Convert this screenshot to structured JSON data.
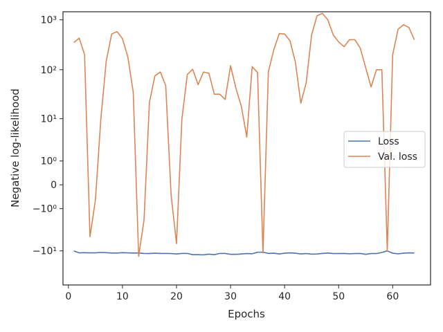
{
  "chart_data": {
    "type": "line",
    "xlabel": "Epochs",
    "ylabel": "Negative log-likelihood",
    "y_scale": "symlog",
    "x_ticks": [
      0,
      10,
      20,
      30,
      40,
      50,
      60
    ],
    "x_tick_labels": [
      "0",
      "10",
      "20",
      "30",
      "40",
      "50",
      "60"
    ],
    "y_ticks": [
      1000,
      100,
      10,
      1,
      0,
      -1,
      -10
    ],
    "y_tick_labels": [
      "10³",
      "10²",
      "10¹",
      "10⁰",
      "0",
      "−10⁰",
      "−10¹"
    ],
    "xlim": [
      -1,
      67
    ],
    "ylim": [
      -50,
      1450
    ],
    "grid": false,
    "legend_position": "center-right",
    "x": [
      1,
      2,
      3,
      4,
      5,
      6,
      7,
      8,
      9,
      10,
      11,
      12,
      13,
      14,
      15,
      16,
      17,
      18,
      19,
      20,
      21,
      22,
      23,
      24,
      25,
      26,
      27,
      28,
      29,
      30,
      31,
      32,
      33,
      34,
      35,
      36,
      37,
      38,
      39,
      40,
      41,
      42,
      43,
      44,
      45,
      46,
      47,
      48,
      49,
      50,
      51,
      52,
      53,
      54,
      55,
      56,
      57,
      58,
      59,
      60,
      61,
      62,
      63,
      64
    ],
    "series": [
      {
        "name": "Loss",
        "color": "#4c72b0",
        "values": [
          -10.0,
          -11.0,
          -10.9,
          -11.0,
          -11.0,
          -10.8,
          -10.9,
          -11.1,
          -11.1,
          -10.9,
          -11.0,
          -11.1,
          -11.1,
          -11.3,
          -11.4,
          -11.2,
          -11.3,
          -11.3,
          -11.4,
          -11.6,
          -11.3,
          -11.3,
          -12.0,
          -12.0,
          -12.1,
          -11.7,
          -12.0,
          -11.3,
          -11.3,
          -11.8,
          -11.8,
          -11.6,
          -11.4,
          -11.5,
          -10.7,
          -10.6,
          -11.3,
          -11.2,
          -11.6,
          -11.2,
          -11.0,
          -11.2,
          -11.6,
          -11.4,
          -11.7,
          -11.6,
          -11.3,
          -11.1,
          -11.4,
          -11.4,
          -11.3,
          -11.5,
          -11.4,
          -11.3,
          -11.8,
          -11.4,
          -11.4,
          -10.8,
          -10.0,
          -11.2,
          -11.5,
          -11.2,
          -11.0,
          -11.1
        ]
      },
      {
        "name": "Val. loss",
        "color": "#dd8452",
        "values": [
          350,
          430,
          200,
          -5,
          -0.5,
          10,
          150,
          520,
          580,
          420,
          180,
          35,
          -13,
          -2,
          22,
          75,
          90,
          48,
          -0.3,
          -7,
          10,
          80,
          102,
          50,
          90,
          85,
          32,
          32,
          25,
          120,
          42,
          18,
          4,
          115,
          88,
          -11,
          90,
          250,
          530,
          520,
          380,
          140,
          21,
          55,
          500,
          1200,
          1350,
          1000,
          500,
          360,
          290,
          400,
          400,
          270,
          110,
          45,
          100,
          100,
          -10,
          200,
          650,
          800,
          700,
          400
        ]
      }
    ]
  }
}
